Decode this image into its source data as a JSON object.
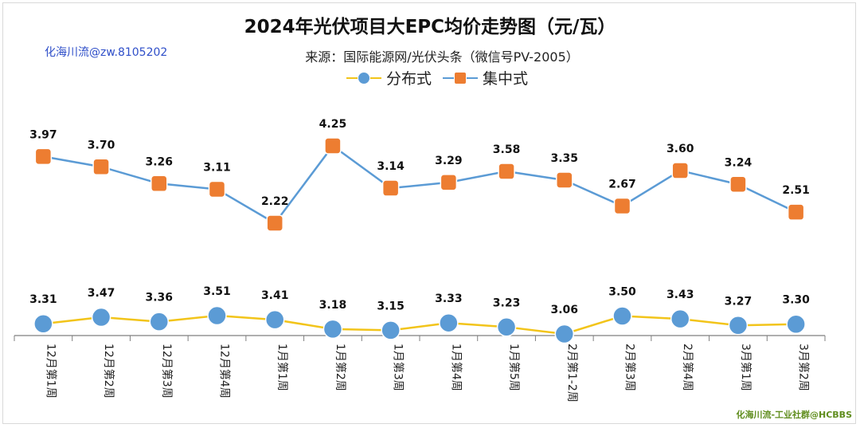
{
  "chart_data": {
    "type": "line",
    "title": "2024年光伏项目大EPC均价走势图（元/瓦）",
    "subtitle": "来源：国际能源网/光伏头条（微信号PV-2005）",
    "categories": [
      "12月第1周",
      "12月第2周",
      "12月第3周",
      "12月第4周",
      "1月第1周",
      "1月第2周",
      "1月第3周",
      "1月第4周",
      "1月第5周",
      "2月第1-2周",
      "2月第3周",
      "2月第4周",
      "3月第1周",
      "3月第2周"
    ],
    "series": [
      {
        "name": "分布式",
        "marker": "circle",
        "line_color": "#f2c41a",
        "marker_color": "#5b9bd5",
        "values": [
          3.31,
          3.47,
          3.36,
          3.51,
          3.41,
          3.18,
          3.15,
          3.33,
          3.23,
          3.06,
          3.5,
          3.43,
          3.27,
          3.3
        ]
      },
      {
        "name": "集中式",
        "marker": "square",
        "line_color": "#5b9bd5",
        "marker_color": "#ed7d31",
        "values": [
          3.97,
          3.7,
          3.26,
          3.11,
          2.22,
          4.25,
          3.14,
          3.29,
          3.58,
          3.35,
          2.67,
          3.6,
          3.24,
          2.51
        ]
      }
    ]
  },
  "watermarks": {
    "left": "化海川流@zw.8105202",
    "right": "化海川流-工业社群@HCBBS"
  },
  "colors": {
    "blue": "#5b9bd5",
    "orange": "#ed7d31",
    "yellow": "#f2c41a",
    "axis": "#7f7f7f"
  }
}
